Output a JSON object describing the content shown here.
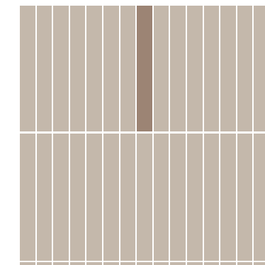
{
  "grid": {
    "columns": 15,
    "rows": 3,
    "selected": [
      {
        "row": 0,
        "col": 7
      }
    ],
    "colors": {
      "tile": "#c4b8ab",
      "tile_selected": "#9c8474",
      "background": "#ffffff"
    }
  }
}
